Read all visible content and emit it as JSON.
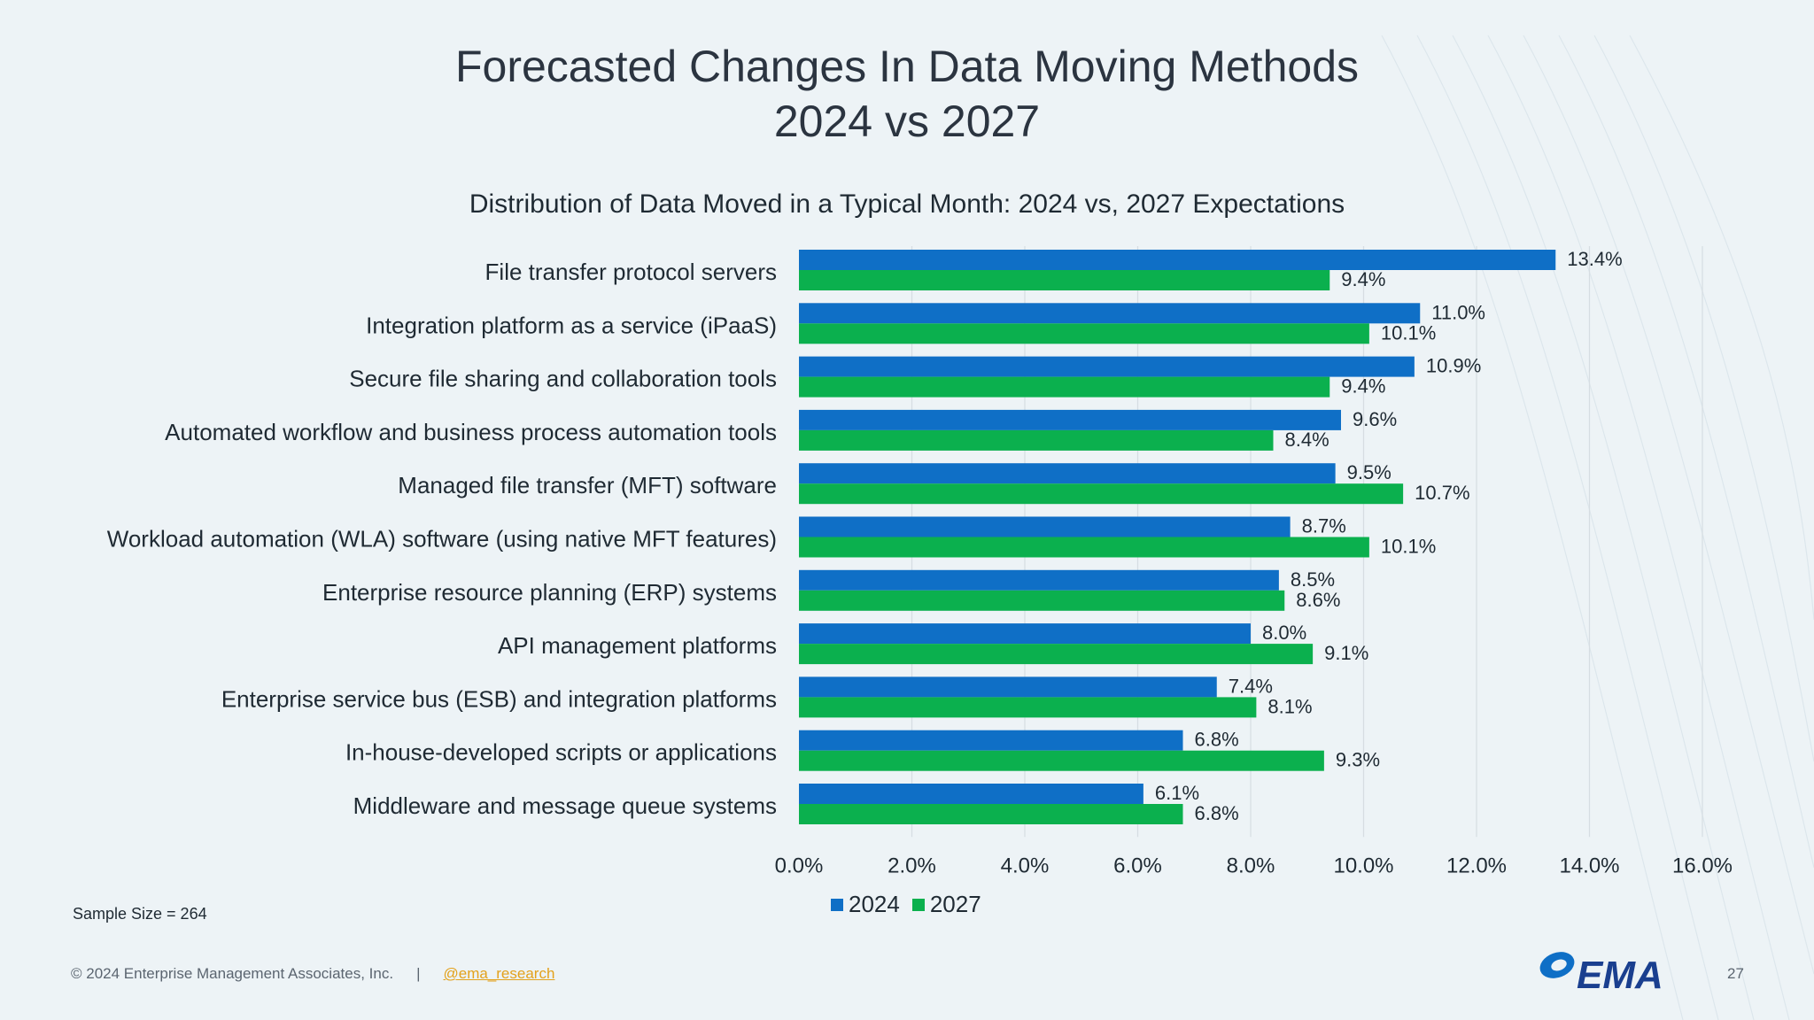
{
  "slide": {
    "title_line1": "Forecasted Changes In Data Moving Methods",
    "title_line2": "2024 vs 2027",
    "subtitle": "Distribution of Data Moved in a Typical Month: 2024 vs, 2027 Expectations",
    "sample_size": "Sample Size = 264",
    "copyright": "© 2024 Enterprise Management Associates, Inc.",
    "separator": "|",
    "twitter_handle": "@ema_research",
    "logo_text": "EMA",
    "page_number": "27"
  },
  "colors": {
    "series_2024": "#0f6fc6",
    "series_2027": "#0bb04e",
    "grid": "#d6dde2"
  },
  "chart_data": {
    "type": "bar",
    "orientation": "horizontal",
    "categories": [
      "File transfer protocol servers",
      "Integration platform as a service (iPaaS)",
      "Secure file sharing and collaboration tools",
      "Automated workflow and business process automation tools",
      "Managed file transfer (MFT) software",
      "Workload automation (WLA) software (using native MFT features)",
      "Enterprise resource planning (ERP) systems",
      "API management platforms",
      "Enterprise service bus (ESB) and integration platforms",
      "In-house-developed scripts or applications",
      "Middleware and message queue systems"
    ],
    "series": [
      {
        "name": "2024",
        "values": [
          13.4,
          11.0,
          10.9,
          9.6,
          9.5,
          8.7,
          8.5,
          8.0,
          7.4,
          6.8,
          6.1
        ]
      },
      {
        "name": "2027",
        "values": [
          9.4,
          10.1,
          9.4,
          8.4,
          10.7,
          10.1,
          8.6,
          9.1,
          8.1,
          9.3,
          6.8
        ]
      }
    ],
    "value_labels": {
      "2024": [
        "13.4%",
        "11.0%",
        "10.9%",
        "9.6%",
        "9.5%",
        "8.7%",
        "8.5%",
        "8.0%",
        "7.4%",
        "6.8%",
        "6.1%"
      ],
      "2027": [
        "9.4%",
        "10.1%",
        "9.4%",
        "8.4%",
        "10.7%",
        "10.1%",
        "8.6%",
        "9.1%",
        "8.1%",
        "9.3%",
        "6.8%"
      ]
    },
    "xlim": [
      0,
      16
    ],
    "xticks": [
      "0.0%",
      "2.0%",
      "4.0%",
      "6.0%",
      "8.0%",
      "10.0%",
      "12.0%",
      "14.0%",
      "16.0%"
    ],
    "grid": true,
    "legend_position": "bottom"
  }
}
